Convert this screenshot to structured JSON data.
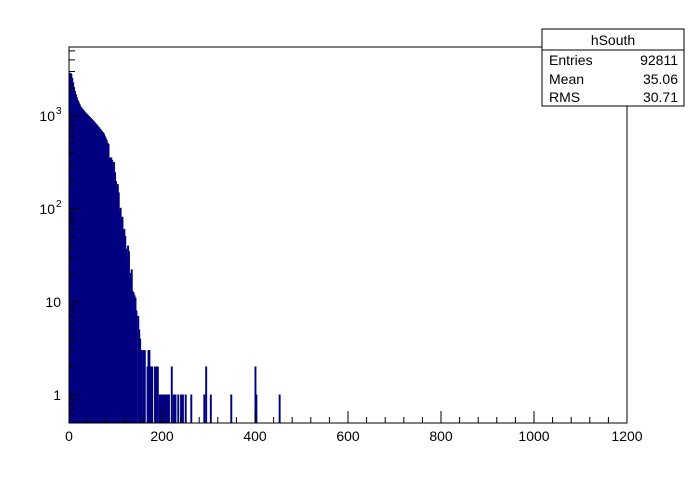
{
  "chart_data": {
    "type": "histogram",
    "title": "",
    "xlabel": "",
    "ylabel": "",
    "xlim": [
      0,
      1200
    ],
    "ylim": [
      0.5,
      5500
    ],
    "yscale": "log",
    "grid": false,
    "line_color": "#000080",
    "x_ticks": [
      {
        "value": 0,
        "label": "0"
      },
      {
        "value": 200,
        "label": "200"
      },
      {
        "value": 400,
        "label": "400"
      },
      {
        "value": 600,
        "label": "600"
      },
      {
        "value": 800,
        "label": "800"
      },
      {
        "value": 1000,
        "label": "1000"
      },
      {
        "value": 1200,
        "label": "1200"
      }
    ],
    "y_ticks": [
      {
        "value": 1,
        "base": "1",
        "exp": ""
      },
      {
        "value": 10,
        "base": "10",
        "exp": ""
      },
      {
        "value": 100,
        "base": "10",
        "exp": "2"
      },
      {
        "value": 1000,
        "base": "10",
        "exp": "3"
      }
    ],
    "stats_box": {
      "title": "hSouth",
      "placement": "top-right",
      "rows": [
        {
          "label": "Entries",
          "value": "92811"
        },
        {
          "label": "Mean",
          "value": "35.06"
        },
        {
          "label": "RMS",
          "value": "30.71"
        }
      ]
    },
    "bin_width": 2,
    "profile": [
      [
        0,
        1100
      ],
      [
        2,
        2900
      ],
      [
        5,
        2800
      ],
      [
        8,
        2400
      ],
      [
        12,
        1900
      ],
      [
        18,
        1500
      ],
      [
        25,
        1250
      ],
      [
        35,
        1080
      ],
      [
        45,
        960
      ],
      [
        55,
        850
      ],
      [
        65,
        740
      ],
      [
        75,
        640
      ],
      [
        80,
        560
      ],
      [
        85,
        480
      ],
      [
        90,
        380
      ],
      [
        95,
        300
      ],
      [
        100,
        220
      ],
      [
        105,
        160
      ],
      [
        110,
        110
      ],
      [
        115,
        75
      ],
      [
        120,
        55
      ],
      [
        125,
        38
      ],
      [
        130,
        26
      ],
      [
        135,
        18
      ],
      [
        140,
        12
      ],
      [
        145,
        9
      ],
      [
        150,
        6
      ],
      [
        155,
        4
      ],
      [
        160,
        3
      ],
      [
        170,
        2.5
      ],
      [
        180,
        2
      ],
      [
        190,
        1.5
      ],
      [
        200,
        1.3
      ],
      [
        215,
        1.2
      ]
    ],
    "sparse_bins": [
      [
        220,
        2
      ],
      [
        224,
        1
      ],
      [
        228,
        1
      ],
      [
        234,
        1
      ],
      [
        240,
        1
      ],
      [
        244,
        1
      ],
      [
        250,
        1
      ],
      [
        262,
        1
      ],
      [
        290,
        1
      ],
      [
        294,
        2
      ],
      [
        304,
        1
      ],
      [
        348,
        1
      ],
      [
        400,
        2
      ],
      [
        402,
        1
      ],
      [
        452,
        1
      ]
    ]
  }
}
